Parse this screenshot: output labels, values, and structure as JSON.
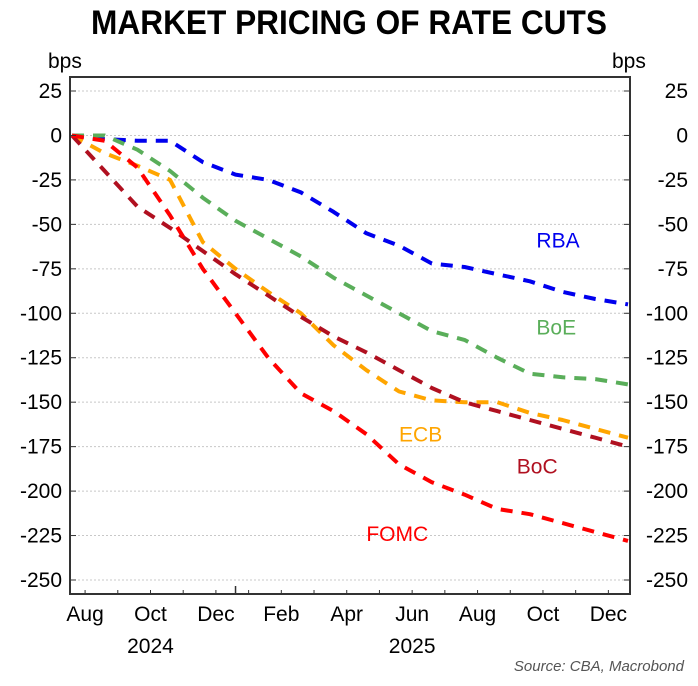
{
  "chart_data": {
    "type": "line",
    "title": "MARKET PRICING OF RATE CUTS",
    "ylabel_left": "bps",
    "ylabel_right": "bps",
    "ylim": [
      -255,
      35
    ],
    "yticks": [
      25,
      0,
      -25,
      -50,
      -75,
      -100,
      -125,
      -150,
      -175,
      -200,
      -225,
      -250
    ],
    "grid": true,
    "x": [
      "Jul 2024",
      "Aug 2024",
      "Sep 2024",
      "Oct 2024",
      "Nov 2024",
      "Dec 2024",
      "Jan 2025",
      "Feb 2025",
      "Mar 2025",
      "Apr 2025",
      "May 2025",
      "Jun 2025",
      "Jul 2025",
      "Aug 2025",
      "Sep 2025",
      "Oct 2025",
      "Nov 2025",
      "Dec 2025"
    ],
    "xtick_labels": [
      {
        "label": "Aug",
        "month_index": 0.4
      },
      {
        "label": "Oct",
        "month_index": 2.4
      },
      {
        "label": "Dec",
        "month_index": 4.4
      },
      {
        "label": "Feb",
        "month_index": 6.4
      },
      {
        "label": "Apr",
        "month_index": 8.4
      },
      {
        "label": "Jun",
        "month_index": 10.4
      },
      {
        "label": "Aug",
        "month_index": 12.4
      },
      {
        "label": "Oct",
        "month_index": 14.4
      },
      {
        "label": "Dec",
        "month_index": 16.4
      }
    ],
    "year_labels": [
      {
        "label": "2024",
        "month_index": 2.4
      },
      {
        "label": "2025",
        "month_index": 10.4
      }
    ],
    "series": [
      {
        "name": "RBA",
        "color": "#0000ee",
        "label_at": [
          14.2,
          -63
        ],
        "values": [
          0,
          -2,
          -3,
          -3,
          -15,
          -22,
          -25,
          -32,
          -43,
          -55,
          -62,
          -72,
          -74,
          -78,
          -82,
          -88,
          -92,
          -95
        ]
      },
      {
        "name": "BoE",
        "color": "#5aae5a",
        "label_at": [
          14.2,
          -112
        ],
        "values": [
          0,
          0,
          -8,
          -20,
          -35,
          -48,
          -58,
          -68,
          -80,
          -90,
          -100,
          -110,
          -115,
          -125,
          -134,
          -136,
          -137,
          -140
        ]
      },
      {
        "name": "ECB",
        "color": "#ffa500",
        "label_at": [
          10.0,
          -172
        ],
        "values": [
          0,
          -10,
          -17,
          -25,
          -60,
          -75,
          -88,
          -100,
          -118,
          -132,
          -144,
          -149,
          -150,
          -150,
          -156,
          -160,
          -165,
          -170
        ]
      },
      {
        "name": "BoC",
        "color": "#b01020",
        "label_at": [
          13.6,
          -190
        ],
        "values": [
          0,
          -20,
          -40,
          -52,
          -65,
          -78,
          -90,
          -102,
          -113,
          -122,
          -132,
          -142,
          -150,
          -155,
          -160,
          -165,
          -170,
          -175
        ]
      },
      {
        "name": "FOMC",
        "color": "#ff0000",
        "label_at": [
          9.0,
          -228
        ],
        "values": [
          0,
          -3,
          -18,
          -45,
          -75,
          -100,
          -125,
          -145,
          -155,
          -168,
          -185,
          -195,
          -202,
          -210,
          -213,
          -218,
          -223,
          -228
        ]
      }
    ],
    "source": "Source: CBA, Macrobond"
  }
}
